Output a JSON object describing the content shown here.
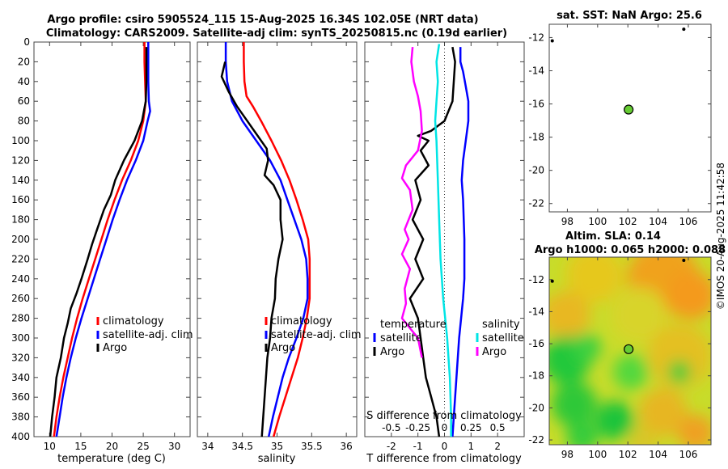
{
  "header": {
    "title_line1": "Argo profile: csiro 5905524_115 15-Aug-2025 16.34S 102.05E (NRT data)",
    "title_line2": "Climatology: CARS2009. Satellite-adj clim: synTS_20250815.nc (0.19d earlier)"
  },
  "credit": "©IMOS 20-Aug-2025 11:42:58",
  "colors": {
    "climatology": "#ff0000",
    "satellite": "#0000ff",
    "argo": "#000000",
    "sal_satellite": "#00e5e5",
    "sal_argo": "#ff00ff",
    "float_marker": "#66cc33"
  },
  "chart_data": [
    {
      "id": "temperature",
      "type": "line",
      "xlabel": "temperature (deg C)",
      "xlim": [
        7.5,
        32.5
      ],
      "xticks": [
        10,
        15,
        20,
        25,
        30
      ],
      "ylim": [
        0,
        400
      ],
      "yticks": [
        0,
        20,
        40,
        60,
        80,
        100,
        120,
        140,
        160,
        180,
        200,
        220,
        240,
        260,
        280,
        300,
        320,
        340,
        360,
        380,
        400
      ],
      "legend": [
        "climatology",
        "satellite-adj. clim",
        "Argo"
      ],
      "series": [
        {
          "name": "climatology",
          "color": "#ff0000",
          "points": [
            [
              25.2,
              0
            ],
            [
              25.2,
              20
            ],
            [
              25.3,
              40
            ],
            [
              25.4,
              60
            ],
            [
              25.0,
              80
            ],
            [
              24.2,
              100
            ],
            [
              23.0,
              120
            ],
            [
              21.6,
              140
            ],
            [
              20.4,
              160
            ],
            [
              19.3,
              180
            ],
            [
              18.3,
              200
            ],
            [
              17.3,
              220
            ],
            [
              16.3,
              240
            ],
            [
              15.3,
              260
            ],
            [
              14.4,
              280
            ],
            [
              13.6,
              300
            ],
            [
              12.9,
              320
            ],
            [
              12.2,
              340
            ],
            [
              11.6,
              360
            ],
            [
              11.1,
              380
            ],
            [
              10.7,
              400
            ]
          ]
        },
        {
          "name": "satellite-adj. clim",
          "color": "#0000ff",
          "points": [
            [
              25.8,
              0
            ],
            [
              25.8,
              20
            ],
            [
              25.8,
              40
            ],
            [
              25.9,
              60
            ],
            [
              26.1,
              70
            ],
            [
              25.7,
              80
            ],
            [
              25.0,
              100
            ],
            [
              23.8,
              120
            ],
            [
              22.4,
              140
            ],
            [
              21.2,
              160
            ],
            [
              20.1,
              180
            ],
            [
              19.1,
              200
            ],
            [
              18.1,
              220
            ],
            [
              17.1,
              240
            ],
            [
              16.1,
              260
            ],
            [
              15.1,
              280
            ],
            [
              14.2,
              300
            ],
            [
              13.4,
              320
            ],
            [
              12.7,
              340
            ],
            [
              12.1,
              360
            ],
            [
              11.6,
              380
            ],
            [
              11.1,
              400
            ]
          ]
        },
        {
          "name": "Argo",
          "color": "#000000",
          "points": [
            [
              25.5,
              5
            ],
            [
              25.5,
              20
            ],
            [
              25.5,
              40
            ],
            [
              25.4,
              60
            ],
            [
              24.8,
              80
            ],
            [
              23.6,
              100
            ],
            [
              21.9,
              120
            ],
            [
              20.5,
              140
            ],
            [
              19.8,
              155
            ],
            [
              18.7,
              170
            ],
            [
              17.6,
              190
            ],
            [
              16.8,
              205
            ],
            [
              16.1,
              220
            ],
            [
              15.1,
              240
            ],
            [
              14.3,
              255
            ],
            [
              13.4,
              270
            ],
            [
              12.9,
              285
            ],
            [
              12.3,
              300
            ],
            [
              11.8,
              320
            ],
            [
              11.1,
              340
            ],
            [
              10.8,
              360
            ],
            [
              10.4,
              380
            ],
            [
              10.1,
              400
            ]
          ]
        }
      ]
    },
    {
      "id": "salinity",
      "type": "line",
      "xlabel": "salinity",
      "xlim": [
        33.85,
        36.15
      ],
      "xticks": [
        34,
        34.5,
        35,
        35.5,
        36
      ],
      "ylim": [
        0,
        400
      ],
      "legend": [
        "climatology",
        "satellite-adj. clim",
        "Argo"
      ],
      "series": [
        {
          "name": "climatology",
          "color": "#ff0000",
          "points": [
            [
              34.52,
              0
            ],
            [
              34.52,
              20
            ],
            [
              34.53,
              40
            ],
            [
              34.56,
              55
            ],
            [
              34.65,
              65
            ],
            [
              34.77,
              80
            ],
            [
              34.92,
              100
            ],
            [
              35.06,
              120
            ],
            [
              35.18,
              140
            ],
            [
              35.28,
              160
            ],
            [
              35.37,
              180
            ],
            [
              35.45,
              200
            ],
            [
              35.47,
              220
            ],
            [
              35.47,
              240
            ],
            [
              35.47,
              260
            ],
            [
              35.43,
              280
            ],
            [
              35.37,
              300
            ],
            [
              35.3,
              320
            ],
            [
              35.21,
              340
            ],
            [
              35.12,
              360
            ],
            [
              35.03,
              380
            ],
            [
              34.95,
              400
            ]
          ]
        },
        {
          "name": "satellite-adj. clim",
          "color": "#0000ff",
          "points": [
            [
              34.26,
              0
            ],
            [
              34.26,
              20
            ],
            [
              34.28,
              40
            ],
            [
              34.35,
              60
            ],
            [
              34.5,
              80
            ],
            [
              34.7,
              100
            ],
            [
              34.9,
              120
            ],
            [
              35.05,
              140
            ],
            [
              35.15,
              160
            ],
            [
              35.25,
              180
            ],
            [
              35.35,
              200
            ],
            [
              35.42,
              220
            ],
            [
              35.44,
              240
            ],
            [
              35.44,
              260
            ],
            [
              35.38,
              280
            ],
            [
              35.28,
              300
            ],
            [
              35.17,
              320
            ],
            [
              35.08,
              340
            ],
            [
              35.01,
              360
            ],
            [
              34.94,
              380
            ],
            [
              34.88,
              400
            ]
          ]
        },
        {
          "name": "Argo",
          "color": "#000000",
          "points": [
            [
              34.25,
              20
            ],
            [
              34.2,
              35
            ],
            [
              34.3,
              50
            ],
            [
              34.42,
              65
            ],
            [
              34.55,
              78
            ],
            [
              34.72,
              95
            ],
            [
              34.85,
              108
            ],
            [
              34.87,
              120
            ],
            [
              34.82,
              135
            ],
            [
              34.95,
              145
            ],
            [
              35.05,
              160
            ],
            [
              35.05,
              180
            ],
            [
              35.08,
              200
            ],
            [
              35.02,
              220
            ],
            [
              34.98,
              240
            ],
            [
              34.97,
              260
            ],
            [
              34.92,
              280
            ],
            [
              34.9,
              300
            ],
            [
              34.86,
              320
            ],
            [
              34.84,
              340
            ],
            [
              34.82,
              360
            ],
            [
              34.8,
              380
            ],
            [
              34.78,
              400
            ]
          ]
        }
      ]
    },
    {
      "id": "difference",
      "type": "line",
      "xlabel": "T difference from climatology",
      "x2label": "S difference from climatology",
      "xlim": [
        -3,
        3
      ],
      "xticks": [
        -2,
        -1,
        0,
        1,
        2
      ],
      "x2ticks": [
        "-0.5",
        "-0.25",
        "0",
        "0.25",
        "0.5"
      ],
      "ylim": [
        0,
        400
      ],
      "legend_temperature_title": "temperature",
      "legend_salinity_title": "salinity",
      "legend_temperature": [
        "satellite",
        "Argo"
      ],
      "legend_salinity": [
        "satellite",
        "Argo"
      ],
      "series": [
        {
          "name": "T satellite",
          "color": "#0000ff",
          "points": [
            [
              0.6,
              5
            ],
            [
              0.6,
              20
            ],
            [
              0.7,
              30
            ],
            [
              0.8,
              45
            ],
            [
              0.9,
              60
            ],
            [
              0.9,
              80
            ],
            [
              0.8,
              100
            ],
            [
              0.7,
              120
            ],
            [
              0.65,
              140
            ],
            [
              0.7,
              160
            ],
            [
              0.75,
              200
            ],
            [
              0.75,
              240
            ],
            [
              0.7,
              260
            ],
            [
              0.55,
              300
            ],
            [
              0.45,
              340
            ],
            [
              0.35,
              380
            ],
            [
              0.3,
              400
            ]
          ]
        },
        {
          "name": "T Argo",
          "color": "#000000",
          "points": [
            [
              0.3,
              5
            ],
            [
              0.4,
              20
            ],
            [
              0.35,
              40
            ],
            [
              0.3,
              60
            ],
            [
              0.0,
              80
            ],
            [
              -0.5,
              90
            ],
            [
              -1.0,
              95
            ],
            [
              -0.6,
              100
            ],
            [
              -0.9,
              110
            ],
            [
              -0.6,
              125
            ],
            [
              -1.1,
              140
            ],
            [
              -0.9,
              160
            ],
            [
              -1.2,
              180
            ],
            [
              -0.8,
              200
            ],
            [
              -1.1,
              220
            ],
            [
              -0.8,
              240
            ],
            [
              -1.3,
              260
            ],
            [
              -1.0,
              280
            ],
            [
              -0.9,
              300
            ],
            [
              -0.8,
              320
            ],
            [
              -0.7,
              340
            ],
            [
              -0.5,
              360
            ],
            [
              -0.3,
              380
            ],
            [
              -0.2,
              400
            ]
          ]
        },
        {
          "name": "S satellite",
          "color": "#00e5e5",
          "points": [
            [
              -0.2,
              2
            ],
            [
              -0.3,
              20
            ],
            [
              -0.25,
              40
            ],
            [
              -0.3,
              60
            ],
            [
              -0.35,
              80
            ],
            [
              -0.3,
              100
            ],
            [
              -0.25,
              140
            ],
            [
              -0.2,
              180
            ],
            [
              -0.15,
              220
            ],
            [
              -0.05,
              260
            ],
            [
              0.1,
              300
            ],
            [
              0.2,
              340
            ],
            [
              0.25,
              380
            ],
            [
              0.25,
              400
            ]
          ]
        },
        {
          "name": "S Argo",
          "color": "#ff00ff",
          "points": [
            [
              -1.2,
              5
            ],
            [
              -1.25,
              20
            ],
            [
              -1.15,
              40
            ],
            [
              -1.0,
              55
            ],
            [
              -0.9,
              70
            ],
            [
              -0.85,
              90
            ],
            [
              -1.0,
              110
            ],
            [
              -1.45,
              125
            ],
            [
              -1.6,
              138
            ],
            [
              -1.3,
              150
            ],
            [
              -1.2,
              170
            ],
            [
              -1.5,
              190
            ],
            [
              -1.35,
              200
            ],
            [
              -1.6,
              215
            ],
            [
              -1.3,
              230
            ],
            [
              -1.5,
              250
            ],
            [
              -1.45,
              265
            ],
            [
              -1.6,
              280
            ],
            [
              -1.3,
              290
            ],
            [
              -1.0,
              300
            ],
            [
              -0.85,
              320
            ]
          ]
        }
      ]
    },
    {
      "id": "sst_map",
      "type": "scatter",
      "title": "sat. SST: NaN Argo: 25.6",
      "xlim": [
        96.8,
        107.5
      ],
      "xticks": [
        98,
        100,
        102,
        104,
        106
      ],
      "ylim": [
        -22.5,
        -11.2
      ],
      "yticks": [
        -12,
        -14,
        -16,
        -18,
        -20,
        -22
      ],
      "float_position": [
        102.05,
        -16.34
      ],
      "track_dots": [
        [
          105.7,
          -11.5
        ],
        [
          97.0,
          -12.2
        ]
      ]
    },
    {
      "id": "sla_map",
      "type": "heatmap",
      "title_line1": "Altim. SLA: 0.14",
      "title_line2": "Argo h1000: 0.065 h2000: 0.088",
      "xlim": [
        96.8,
        107.5
      ],
      "xticks": [
        98,
        100,
        102,
        104,
        106
      ],
      "ylim": [
        -22.3,
        -10.6
      ],
      "yticks": [
        -12,
        -14,
        -16,
        -18,
        -20,
        -22
      ],
      "float_position": [
        102.05,
        -16.34
      ],
      "track_dots": [
        [
          105.7,
          -10.8
        ],
        [
          97.0,
          -12.1
        ]
      ]
    }
  ]
}
